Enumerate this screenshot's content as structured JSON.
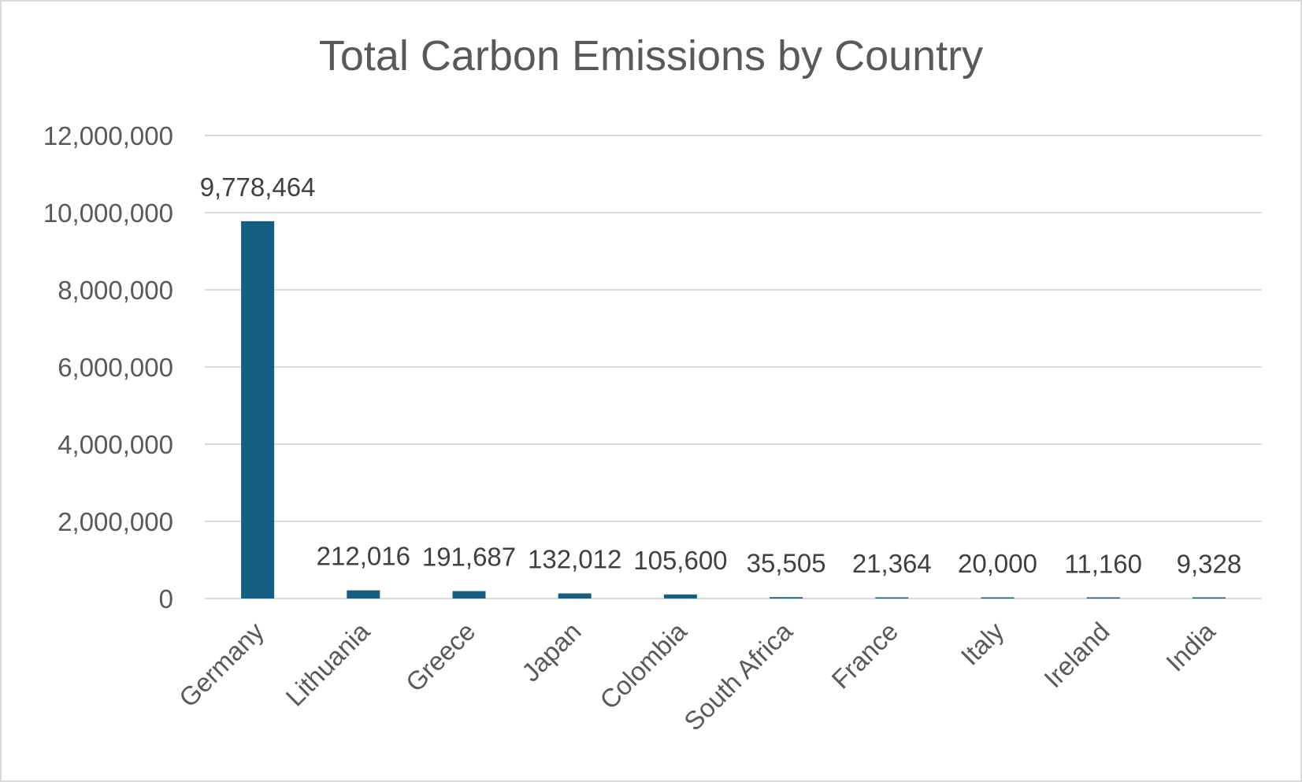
{
  "chart_data": {
    "type": "bar",
    "title": "Total Carbon Emissions by Country",
    "xlabel": "",
    "ylabel": "",
    "categories": [
      "Germany",
      "Lithuania",
      "Greece",
      "Japan",
      "Colombia",
      "South Africa",
      "France",
      "Italy",
      "Ireland",
      "India"
    ],
    "values": [
      9778464,
      212016,
      191687,
      132012,
      105600,
      35505,
      21364,
      20000,
      11160,
      9328
    ],
    "data_labels": [
      "9,778,464",
      "212,016",
      "191,687",
      "132,012",
      "105,600",
      "35,505",
      "21,364",
      "20,000",
      "11,160",
      "9,328"
    ],
    "y_ticks": [
      0,
      2000000,
      4000000,
      6000000,
      8000000,
      10000000,
      12000000
    ],
    "y_tick_labels": [
      "0",
      "2,000,000",
      "4,000,000",
      "6,000,000",
      "8,000,000",
      "10,000,000",
      "12,000,000"
    ],
    "ylim": [
      0,
      12000000
    ],
    "grid": true,
    "legend": "none",
    "bar_color": "#156082",
    "gridline_color": "#d9d9d9"
  }
}
